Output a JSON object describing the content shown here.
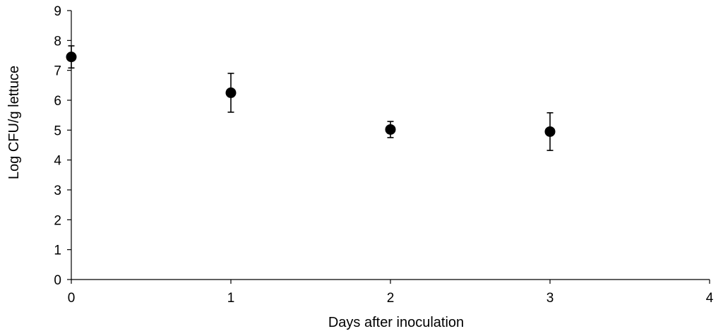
{
  "chart_data": {
    "type": "scatter",
    "title": "",
    "xlabel": "Days after inoculation",
    "ylabel": "Log CFU/g lettuce",
    "xlim": [
      0,
      4
    ],
    "ylim": [
      0,
      9
    ],
    "x_ticks": [
      "0",
      "1",
      "2",
      "3",
      "4"
    ],
    "y_ticks": [
      "0",
      "1",
      "2",
      "3",
      "4",
      "5",
      "6",
      "7",
      "8",
      "9"
    ],
    "grid": false,
    "legend": "none",
    "marker_color": "#000000",
    "series": [
      {
        "x": [
          0,
          1,
          2,
          3
        ],
        "y": [
          7.45,
          6.25,
          5.02,
          4.95
        ],
        "error": [
          0.37,
          0.65,
          0.27,
          0.63
        ]
      }
    ]
  }
}
